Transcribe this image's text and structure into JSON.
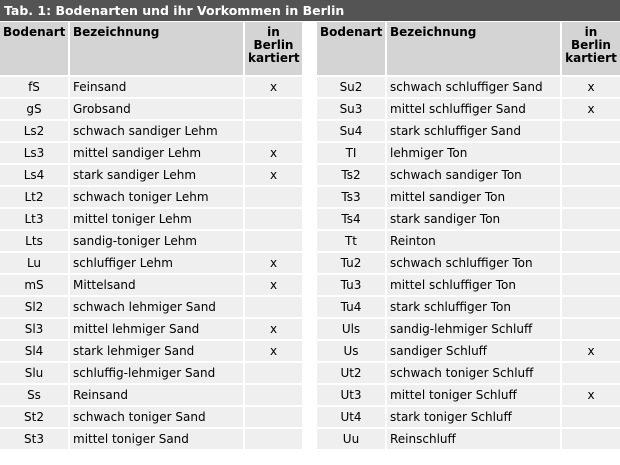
{
  "title": "Tab. 1: Bodenarten und ihr Vorkommen in Berlin",
  "headers": [
    "Bodenart",
    "Bezeichnung",
    "in Berlin kartiert"
  ],
  "left_rows": [
    [
      "fS",
      "Feinsand",
      "x"
    ],
    [
      "gS",
      "Grobsand",
      ""
    ],
    [
      "Ls2",
      "schwach sandiger Lehm",
      ""
    ],
    [
      "Ls3",
      "mittel sandiger Lehm",
      "x"
    ],
    [
      "Ls4",
      "stark sandiger Lehm",
      "x"
    ],
    [
      "Lt2",
      "schwach toniger Lehm",
      ""
    ],
    [
      "Lt3",
      "mittel toniger Lehm",
      ""
    ],
    [
      "Lts",
      "sandig-toniger Lehm",
      ""
    ],
    [
      "Lu",
      "schluffiger Lehm",
      "x"
    ],
    [
      "mS",
      "Mittelsand",
      "x"
    ],
    [
      "Sl2",
      "schwach lehmiger Sand",
      ""
    ],
    [
      "Sl3",
      "mittel lehmiger Sand",
      "x"
    ],
    [
      "Sl4",
      "stark lehmiger Sand",
      "x"
    ],
    [
      "Slu",
      "schluffig-lehmiger Sand",
      ""
    ],
    [
      "Ss",
      "Reinsand",
      ""
    ],
    [
      "St2",
      "schwach toniger Sand",
      ""
    ],
    [
      "St3",
      "mittel toniger Sand",
      ""
    ]
  ],
  "right_rows": [
    [
      "Su2",
      "schwach schluffiger Sand",
      "x"
    ],
    [
      "Su3",
      "mittel schluffiger Sand",
      "x"
    ],
    [
      "Su4",
      "stark schluffiger Sand",
      ""
    ],
    [
      "TI",
      "lehmiger Ton",
      ""
    ],
    [
      "Ts2",
      "schwach sandiger Ton",
      ""
    ],
    [
      "Ts3",
      "mittel sandiger Ton",
      ""
    ],
    [
      "Ts4",
      "stark sandiger Ton",
      ""
    ],
    [
      "Tt",
      "Reinton",
      ""
    ],
    [
      "Tu2",
      "schwach schluffiger Ton",
      ""
    ],
    [
      "Tu3",
      "mittel schluffiger Ton",
      ""
    ],
    [
      "Tu4",
      "stark schluffiger Ton",
      ""
    ],
    [
      "Uls",
      "sandig-lehmiger Schluff",
      ""
    ],
    [
      "Us",
      "sandiger Schluff",
      "x"
    ],
    [
      "Ut2",
      "schwach toniger Schluff",
      ""
    ],
    [
      "Ut3",
      "mittel toniger Schluff",
      "x"
    ],
    [
      "Ut4",
      "stark toniger Schluff",
      ""
    ],
    [
      "Uu",
      "Reinschluff",
      ""
    ]
  ]
}
